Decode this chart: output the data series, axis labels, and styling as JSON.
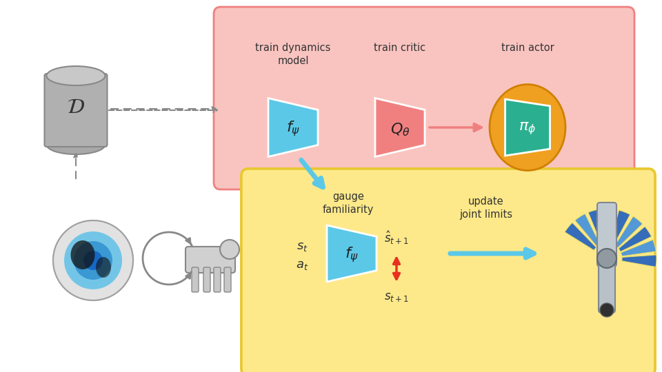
{
  "bg_color": "#ffffff",
  "top_box_color": "#f9c4c0",
  "top_box_border": "#f08080",
  "bottom_box_color": "#fde98a",
  "bottom_box_border": "#e8c830",
  "cyan_block_color": "#5bc8e8",
  "pink_block_color": "#f08080",
  "teal_block_color": "#2ab090",
  "orange_ellipse_color": "#f0a020",
  "db_color": "#b0b0b0",
  "db_border": "#888888",
  "arrow_pink_color": "#f08080",
  "arrow_blue_color": "#5bc8e8",
  "arrow_red_color": "#e83020",
  "arrow_gray_color": "#888888",
  "label_train_dynamics": "train dynamics\nmodel",
  "label_train_critic": "train critic",
  "label_train_actor": "train actor",
  "label_gauge": "gauge\nfamiliarity",
  "label_update": "update\njoint limits",
  "label_f_psi_top": "$f_{\\psi}$",
  "label_Q_theta": "$Q_{\\theta}$",
  "label_pi_phi": "$\\pi_{\\phi}$",
  "label_f_psi_bot": "$f_{\\psi}$",
  "label_s_t": "$s_t$",
  "label_a_t": "$a_t$",
  "label_s_hat": "$\\hat{s}_{t+1}$",
  "label_s_next": "$s_{t+1}$",
  "label_D": "$\\mathcal{D}$"
}
